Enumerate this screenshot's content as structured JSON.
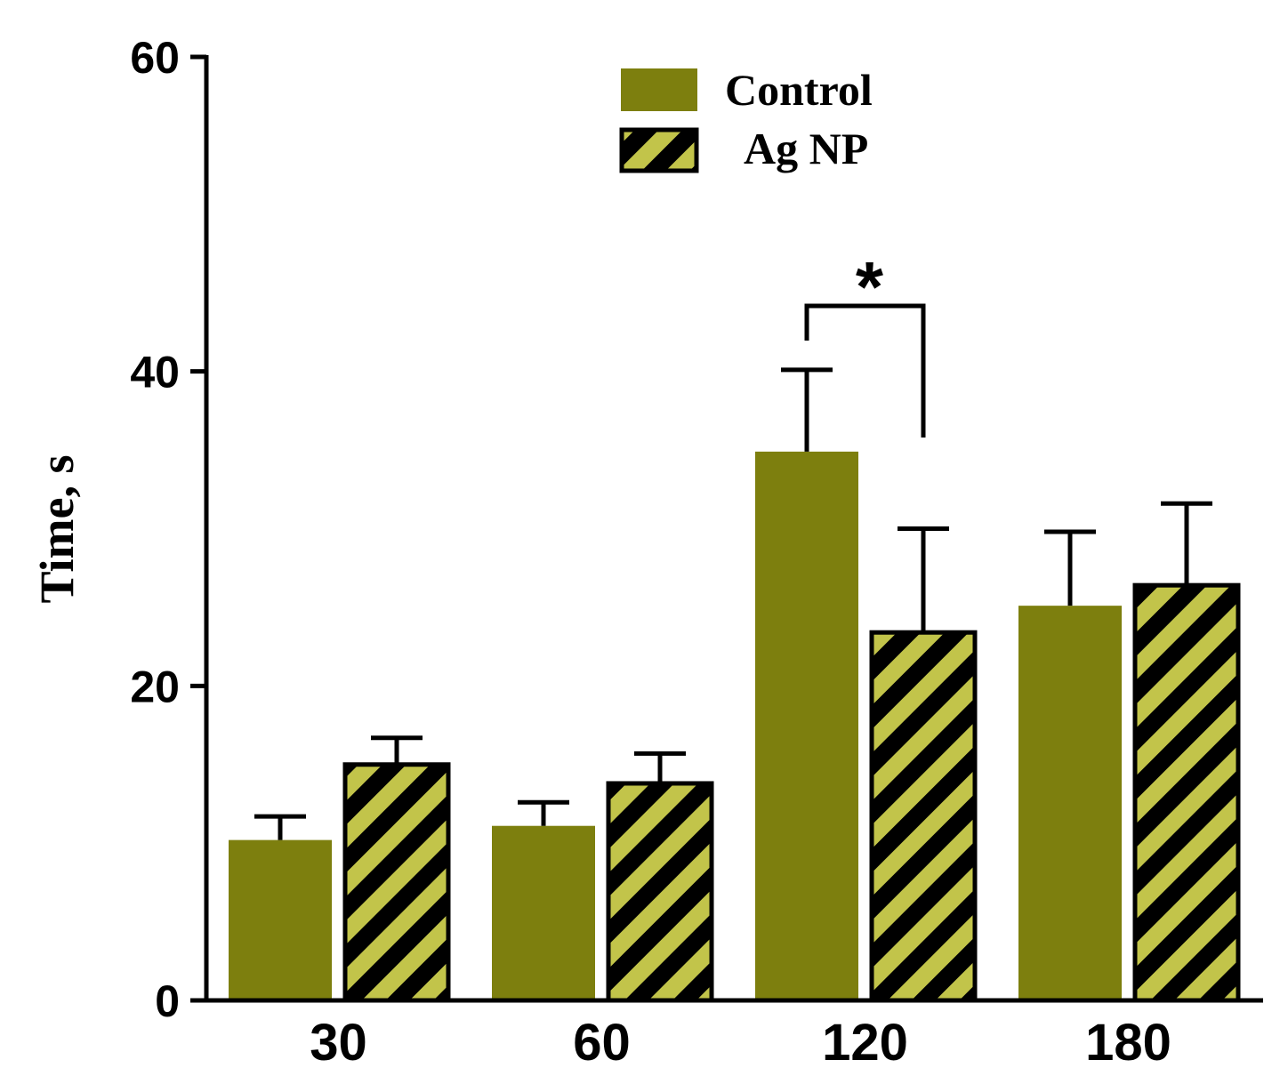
{
  "chart_data": {
    "type": "bar",
    "title": "",
    "xlabel": "",
    "ylabel": "Time, s",
    "ylim": [
      0,
      60
    ],
    "yticks": [
      "0",
      "20",
      "40",
      "60"
    ],
    "ytick_values": [
      0,
      20,
      40,
      60
    ],
    "categories": [
      "30",
      "60",
      "120",
      "180"
    ],
    "series": [
      {
        "name": "Control",
        "values": [
          10.2,
          11.1,
          34.9,
          25.1
        ],
        "errors": [
          1.5,
          1.5,
          5.2,
          4.7
        ],
        "color": "#7d7f0e"
      },
      {
        "name": "Ag NP",
        "values": [
          15.0,
          13.8,
          23.4,
          26.4
        ],
        "errors": [
          1.7,
          1.9,
          6.6,
          5.2
        ],
        "color": "#c2c44a",
        "stripe_color": "#000000"
      }
    ],
    "legend_position": "top-center",
    "grid": false,
    "annotations": [
      {
        "text": "*",
        "category": "120",
        "between_series": [
          "Control",
          "Ag NP"
        ]
      }
    ]
  }
}
